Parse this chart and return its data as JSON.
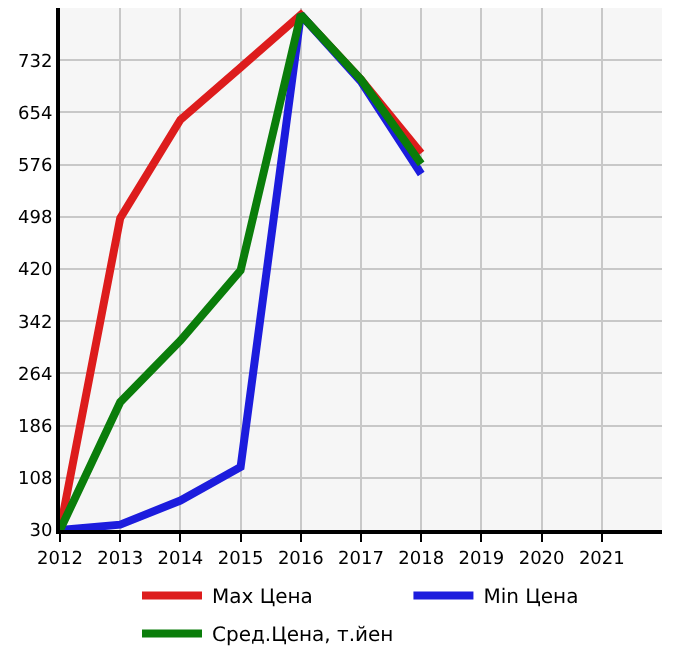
{
  "chart_data": {
    "type": "line",
    "x": [
      2012,
      2013,
      2014,
      2015,
      2016,
      2017,
      2018
    ],
    "series": [
      {
        "name": "Max Цена",
        "color": "#dd1c1c",
        "values": [
          30,
          496,
          643,
          721,
          800,
          703,
          593
        ]
      },
      {
        "name": "Min Цена",
        "color": "#1c1cdd",
        "values": [
          30,
          38,
          74,
          124,
          800,
          700,
          562
        ]
      },
      {
        "name": "Сред.Цена, т.йен",
        "color": "#0a7d0a",
        "values": [
          30,
          221,
          313,
          418,
          800,
          703,
          577
        ]
      }
    ],
    "xlim": [
      2012,
      2022
    ],
    "xticks": [
      2012,
      2013,
      2014,
      2015,
      2016,
      2017,
      2018,
      2019,
      2020,
      2021
    ],
    "ylim": [
      30,
      810
    ],
    "yticks": [
      30,
      108,
      186,
      264,
      342,
      420,
      498,
      576,
      654,
      732
    ],
    "grid": true,
    "legend": "bottom",
    "marker": "none",
    "line_style": "solid"
  }
}
